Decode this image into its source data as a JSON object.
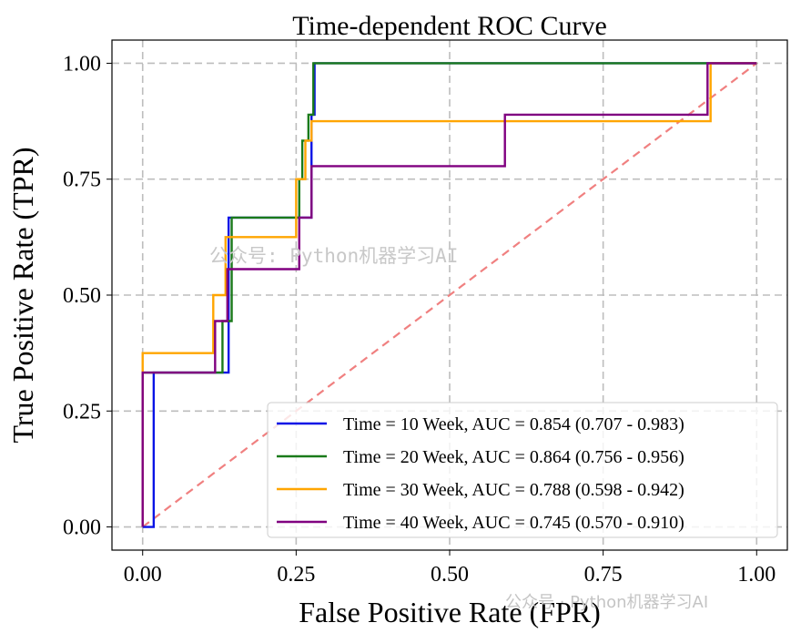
{
  "chart_data": {
    "type": "line",
    "title": "Time-dependent ROC Curve",
    "xlabel": "False Positive Rate (FPR)",
    "ylabel": "True Positive Rate (TPR)",
    "xlim": [
      -0.05,
      1.05
    ],
    "ylim": [
      -0.05,
      1.05
    ],
    "xticks": [
      0.0,
      0.25,
      0.5,
      0.75,
      1.0
    ],
    "yticks": [
      0.0,
      0.25,
      0.5,
      0.75,
      1.0
    ],
    "xtick_labels": [
      "0.00",
      "0.25",
      "0.50",
      "0.75",
      "1.00"
    ],
    "ytick_labels": [
      "0.00",
      "0.25",
      "0.50",
      "0.75",
      "1.00"
    ],
    "grid": true,
    "legend_position": "bottom-right",
    "reference_line": {
      "x": [
        0,
        1
      ],
      "y": [
        0,
        1
      ],
      "color": "#f08080",
      "style": "dashed"
    },
    "series": [
      {
        "name": "Time = 10 Week, AUC = 0.854 (0.707 - 0.983)",
        "color": "#0a14e6",
        "x": [
          0,
          0.018,
          0.018,
          0.14,
          0.14,
          0.275,
          0.275,
          0.28,
          0.28,
          1.0
        ],
        "y": [
          0,
          0,
          0.333,
          0.333,
          0.667,
          0.667,
          0.889,
          0.889,
          1.0,
          1.0
        ]
      },
      {
        "name": "Time = 20 Week, AUC = 0.864 (0.756 - 0.956)",
        "color": "#1a7a1a",
        "x": [
          0,
          0,
          0.13,
          0.13,
          0.145,
          0.145,
          0.255,
          0.255,
          0.26,
          0.26,
          0.27,
          0.27,
          0.278,
          0.278,
          1.0
        ],
        "y": [
          0,
          0.333,
          0.333,
          0.444,
          0.444,
          0.667,
          0.667,
          0.75,
          0.75,
          0.833,
          0.833,
          0.889,
          0.889,
          1.0,
          1.0
        ]
      },
      {
        "name": "Time = 30 Week, AUC = 0.788 (0.598 - 0.942)",
        "color": "#ffa500",
        "x": [
          0,
          0,
          0.115,
          0.115,
          0.135,
          0.135,
          0.25,
          0.25,
          0.265,
          0.265,
          0.275,
          0.275,
          0.925,
          0.925,
          1.0
        ],
        "y": [
          0,
          0.375,
          0.375,
          0.5,
          0.5,
          0.625,
          0.625,
          0.75,
          0.75,
          0.833,
          0.833,
          0.875,
          0.875,
          1.0,
          1.0
        ]
      },
      {
        "name": "Time = 40 Week, AUC = 0.745 (0.570 - 0.910)",
        "color": "#800080",
        "x": [
          0,
          0,
          0.118,
          0.118,
          0.138,
          0.138,
          0.255,
          0.255,
          0.275,
          0.275,
          0.59,
          0.59,
          0.92,
          0.92,
          1.0
        ],
        "y": [
          0,
          0.333,
          0.333,
          0.444,
          0.444,
          0.556,
          0.556,
          0.667,
          0.667,
          0.778,
          0.778,
          0.889,
          0.889,
          1.0,
          1.0
        ]
      }
    ]
  },
  "watermarks": {
    "center": "公众号: Python机器学习AI",
    "bottom": "公众号 · Python机器学习AI"
  }
}
